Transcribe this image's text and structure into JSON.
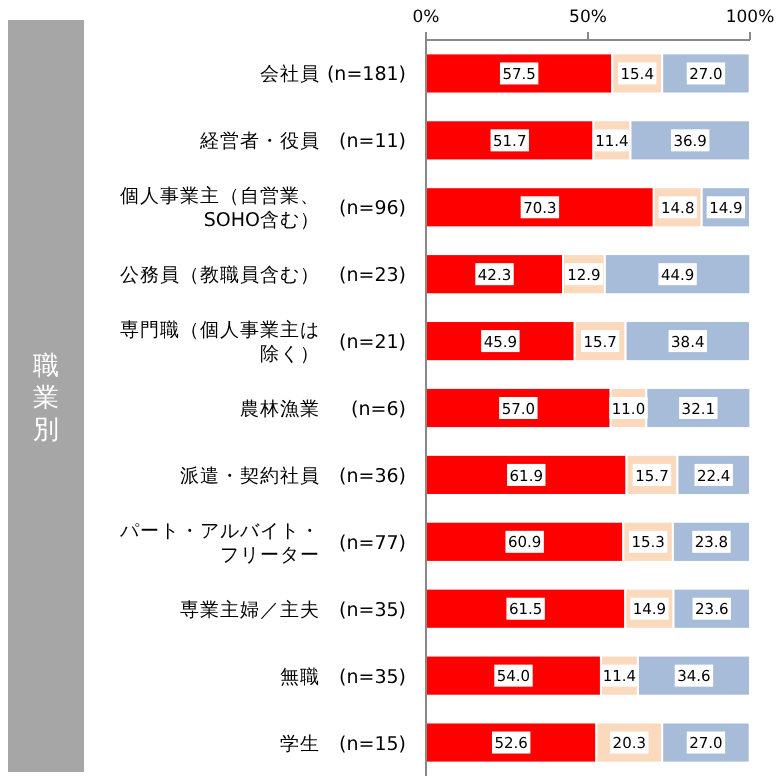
{
  "chart_data": {
    "type": "bar",
    "orientation": "horizontal",
    "stacked": true,
    "ylabel": "職業別",
    "categories": [
      "会社員 (n=181)",
      "経営者・役員 (n=11)",
      "個人事業主（自営業、SOHO含む） (n=96)",
      "公務員（教職員含む） (n=23)",
      "専門職（個人事業主は除く） (n=21)",
      "農林漁業 (n=6)",
      "派遣・契約社員 (n=36)",
      "パート・アルバイト・フリーター (n=77)",
      "専業主婦／主夫 (n=35)",
      "無職 (n=35)",
      "学生 (n=15)"
    ],
    "series": [
      {
        "color": "#ff0000",
        "values": [
          57.5,
          51.7,
          70.3,
          42.3,
          45.9,
          57.0,
          61.9,
          60.9,
          61.5,
          54.0,
          52.6
        ],
        "value_labels": [
          "57.5",
          "51.7",
          "70.3",
          "42.3",
          "45.9",
          "57.0",
          "61.9",
          "60.9",
          "61.5",
          "54.0",
          "52.6"
        ]
      },
      {
        "color": "#fbd9bd",
        "values": [
          15.4,
          11.4,
          14.8,
          12.9,
          15.7,
          11.0,
          15.7,
          15.3,
          14.9,
          11.4,
          20.3
        ],
        "value_labels": [
          "15.4",
          "11.4",
          "14.8",
          "12.9",
          "15.7",
          "11.0",
          "15.7",
          "15.3",
          "14.9",
          "11.4",
          "20.3"
        ]
      },
      {
        "color": "#a7bcd8",
        "values": [
          27.0,
          36.9,
          14.9,
          44.9,
          38.4,
          32.1,
          22.4,
          23.8,
          23.6,
          34.6,
          27.0
        ],
        "value_labels": [
          "27.0",
          "36.9",
          "14.9",
          "44.9",
          "38.4",
          "32.1",
          "22.4",
          "23.8",
          "23.6",
          "34.6",
          "27.0"
        ]
      }
    ],
    "xlim": [
      0,
      100
    ],
    "xticks": [
      {
        "value": 0,
        "label": "0%"
      },
      {
        "value": 50,
        "label": "50%"
      },
      {
        "value": 100,
        "label": "100%"
      }
    ]
  }
}
